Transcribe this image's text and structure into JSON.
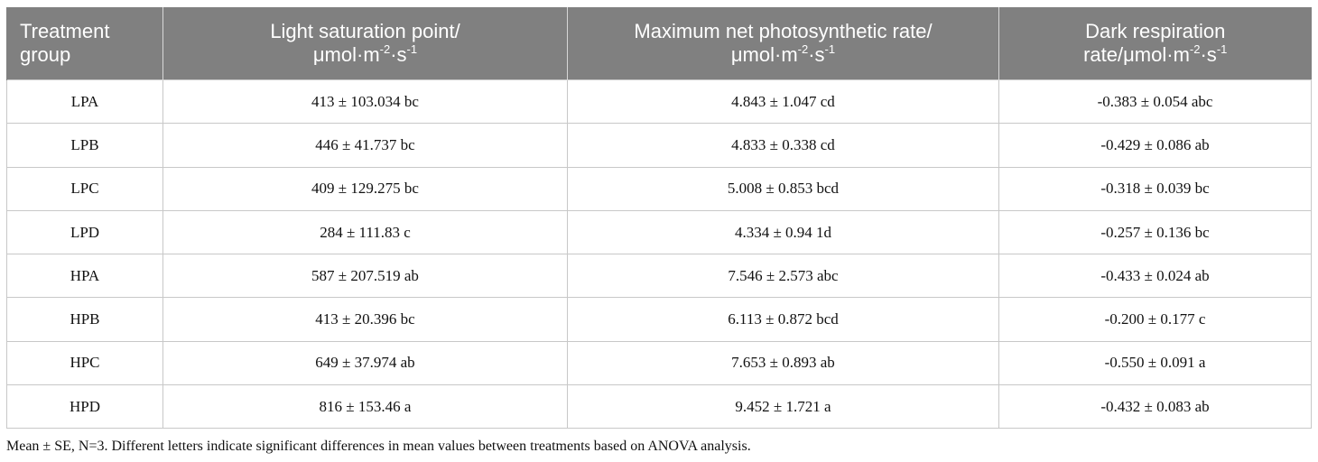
{
  "table": {
    "headers": [
      {
        "line1": "Treatment group",
        "line2": ""
      },
      {
        "line1": "Light saturation point/",
        "line2_pre": "μmol·m",
        "sup1": "-2",
        "mid": "·s",
        "sup2": "-1"
      },
      {
        "line1": "Maximum net photosynthetic rate/",
        "line2_pre": "μmol·m",
        "sup1": "-2",
        "mid": "·s",
        "sup2": "-1"
      },
      {
        "line1": "Dark respiration",
        "line2_pre": "rate/μmol·m",
        "sup1": "-2",
        "mid": "·s",
        "sup2": "-1"
      }
    ],
    "rows": [
      [
        "LPA",
        "413 ± 103.034 bc",
        "4.843 ± 1.047 cd",
        "-0.383 ± 0.054 abc"
      ],
      [
        "LPB",
        "446 ± 41.737 bc",
        "4.833 ± 0.338 cd",
        "-0.429 ± 0.086 ab"
      ],
      [
        "LPC",
        "409 ± 129.275 bc",
        "5.008 ± 0.853 bcd",
        "-0.318 ± 0.039 bc"
      ],
      [
        "LPD",
        "284 ± 111.83 c",
        "4.334 ± 0.94 1d",
        "-0.257 ± 0.136 bc"
      ],
      [
        "HPA",
        "587 ± 207.519 ab",
        "7.546 ± 2.573 abc",
        "-0.433 ± 0.024 ab"
      ],
      [
        "HPB",
        "413 ± 20.396 bc",
        "6.113 ± 0.872 bcd",
        "-0.200 ± 0.177 c"
      ],
      [
        "HPC",
        "649 ± 37.974 ab",
        "7.653 ± 0.893 ab",
        "-0.550 ± 0.091 a"
      ],
      [
        "HPD",
        "816 ± 153.46 a",
        "9.452 ± 1.721 a",
        "-0.432 ± 0.083 ab"
      ]
    ]
  },
  "footnote": "Mean ± SE, N=3. Different letters indicate significant differences in mean values between treatments based on ANOVA analysis."
}
